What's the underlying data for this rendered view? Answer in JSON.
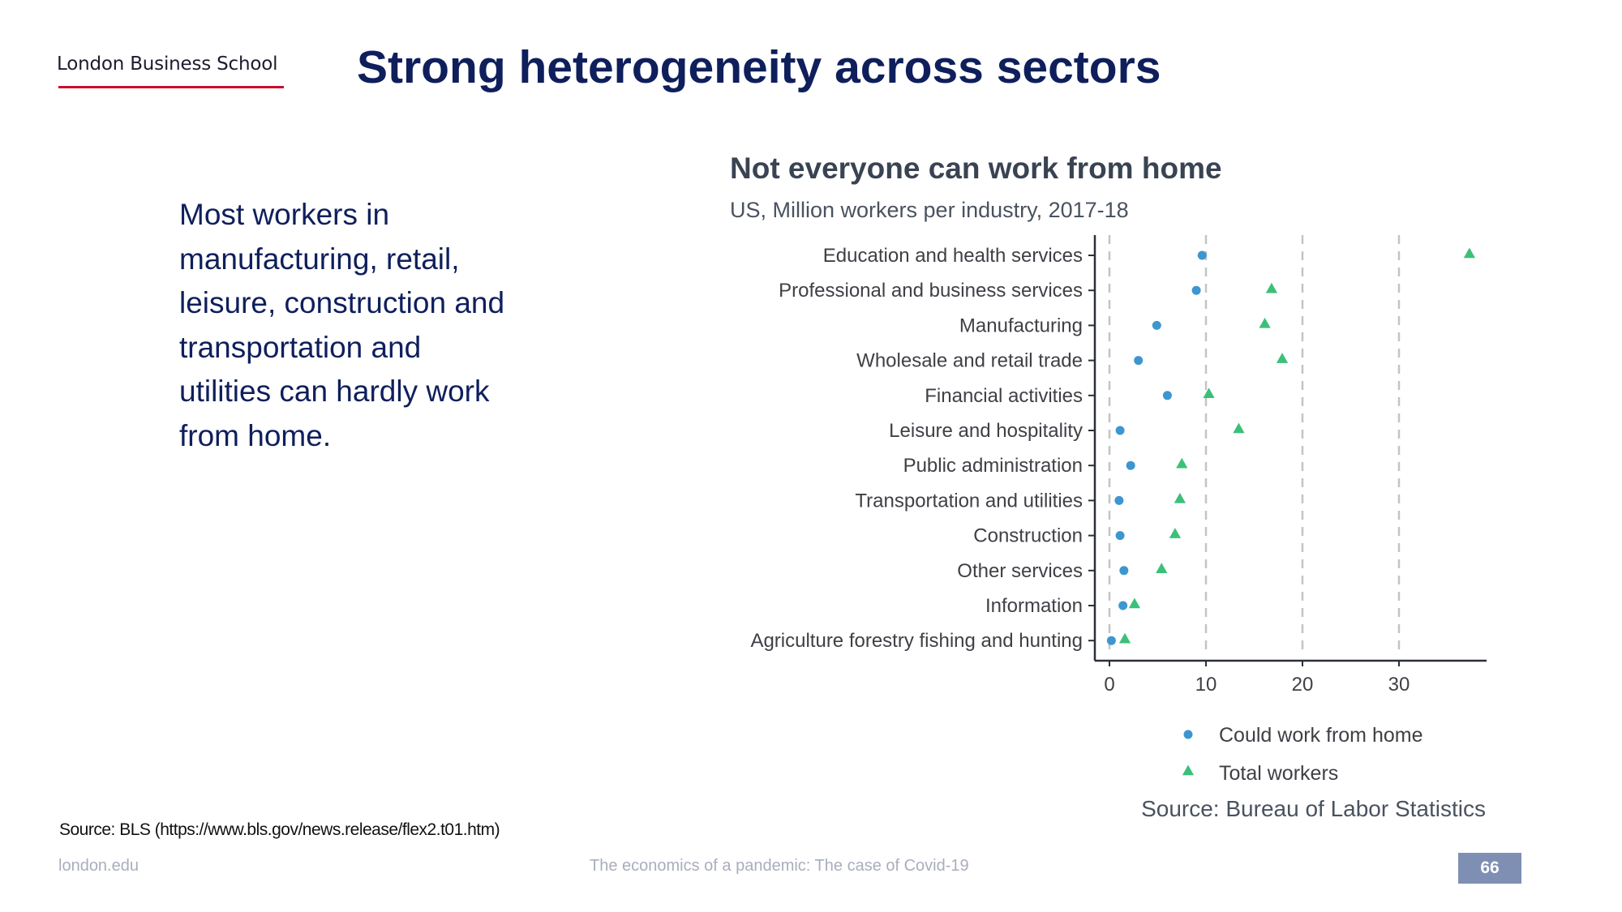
{
  "header": {
    "logo": "London Business School",
    "title": "Strong heterogeneity across sectors"
  },
  "body": {
    "text": "Most workers in manufacturing, retail, leisure, construction and transportation and utilities can hardly work from home."
  },
  "source_note": "Source: BLS (https://www.bls.gov/news.release/flex2.t01.htm)",
  "footer": {
    "left": "london.edu",
    "center": "The economics of a pandemic: The case of Covid-19",
    "page": "66"
  },
  "colors": {
    "could_work": "#3d96cf",
    "total": "#3cc079",
    "title_navy": "#0f1f5c",
    "accent_red": "#c8102e",
    "page_box": "#7f8fb4"
  },
  "chart_data": {
    "type": "scatter",
    "title": "Not everyone can work from home",
    "subtitle": "US, Million workers per industry, 2017-18",
    "source": "Source: Bureau of Labor Statistics",
    "xlabel": "",
    "ylabel": "",
    "xlim": [
      -1.5,
      39
    ],
    "xticks": [
      0,
      10,
      20,
      30
    ],
    "grid": "vertical dashed at ticks",
    "legend_position": "bottom-right",
    "categories": [
      "Education and health services",
      "Professional and business services",
      "Manufacturing",
      "Wholesale and retail trade",
      "Financial activities",
      "Leisure and hospitality",
      "Public administration",
      "Transportation and utilities",
      "Construction",
      "Other services",
      "Information",
      "Agriculture forestry fishing and hunting"
    ],
    "series": [
      {
        "name": "Could work from home",
        "marker": "circle",
        "values": [
          9.6,
          9.0,
          4.9,
          3.0,
          6.0,
          1.1,
          2.2,
          1.0,
          1.1,
          1.5,
          1.4,
          0.2
        ]
      },
      {
        "name": "Total workers",
        "marker": "triangle",
        "values": [
          37.3,
          16.8,
          16.1,
          17.9,
          10.3,
          13.4,
          7.5,
          7.3,
          6.8,
          5.4,
          2.6,
          1.6
        ]
      }
    ]
  }
}
